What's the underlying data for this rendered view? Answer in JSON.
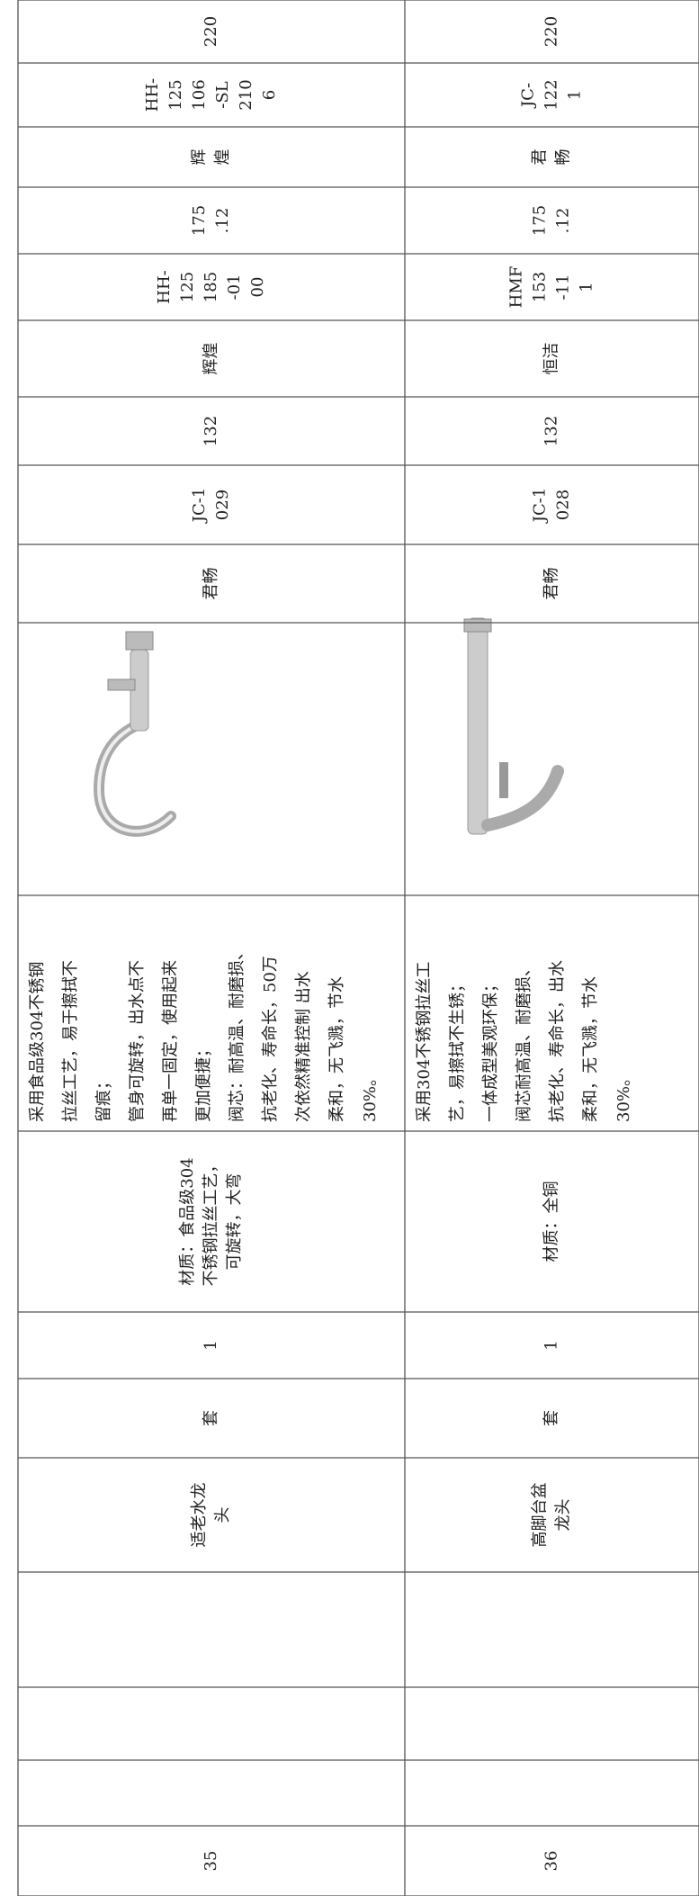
{
  "table": {
    "rows": [
      {
        "no": "35",
        "name": [
          "适老水龙",
          "头"
        ],
        "unit": "套",
        "qty": "1",
        "material": [
          "材质：食品级304",
          "不锈钢拉丝工艺，",
          "可旋转，大弯"
        ],
        "description": [
          "采用食品级304不锈钢",
          "拉丝工艺，易于擦拭不",
          "留痕；",
          "管身可旋转，出水点不",
          "再单一固定，使用起来",
          "更加便捷；",
          "阀芯：耐高温、耐磨损、",
          "抗老化、寿命长，50万",
          "次依然精准控制 出水",
          "柔和，无飞溅，节水",
          "30%。"
        ],
        "brand1": [
          "君畅"
        ],
        "model1": [
          "JC-1",
          "029"
        ],
        "price1": [
          "132"
        ],
        "brand2": [
          "辉煌"
        ],
        "model2": [
          "HH-",
          "125",
          "185",
          "-01",
          "00"
        ],
        "price2": [
          "175",
          ".12"
        ],
        "brand3": [
          "辉",
          "煌"
        ],
        "model3": [
          "HH-",
          "125",
          "106",
          "-SL",
          "210",
          "6"
        ],
        "price3": [
          "220"
        ]
      },
      {
        "no": "36",
        "name": [
          "高脚台盆",
          "龙头"
        ],
        "unit": "套",
        "qty": "1",
        "material": [
          "材质：全铜"
        ],
        "description": [
          "采用304不锈钢拉丝工",
          "艺，易擦拭不生锈；",
          "一体成型美观环保；",
          "阀芯耐高温、耐磨损、",
          "抗老化、寿命长，出水",
          "柔和，无飞溅，节水",
          "30%。"
        ],
        "brand1": [
          "君畅"
        ],
        "model1": [
          "JC-1",
          "028"
        ],
        "price1": [
          "132"
        ],
        "brand2": [
          "恒洁"
        ],
        "model2": [
          "HMF",
          "153",
          "-11",
          "1"
        ],
        "price2": [
          "175",
          ".12"
        ],
        "brand3": [
          "君",
          "畅"
        ],
        "model3": [
          "JC-",
          "122",
          "1"
        ],
        "price3": [
          "220"
        ]
      }
    ]
  }
}
